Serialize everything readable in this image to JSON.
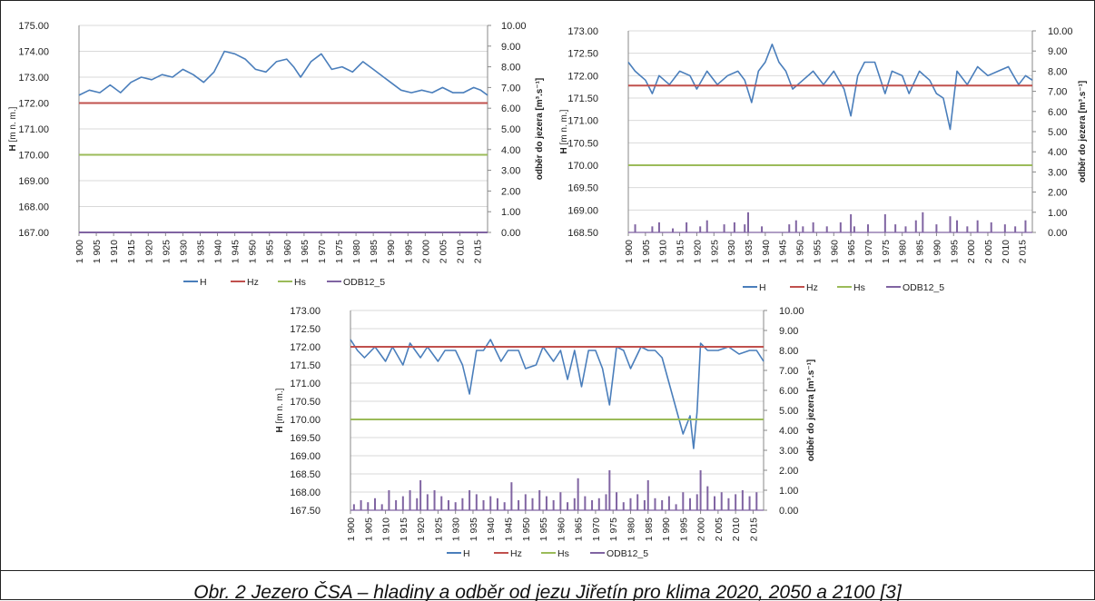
{
  "figure": {
    "caption": "Obr. 2 Jezero ČSA – hladiny a odběr od jezu Jiřetín pro klima 2020, 2050 a 2100 [3]"
  },
  "legend_labels": [
    "H",
    "Hz",
    "Hs",
    "ODB12_5"
  ],
  "colors": {
    "H": "#4a7ebb",
    "Hz": "#c0504d",
    "Hs": "#9bbb59",
    "ODB12_5": "#8064a2"
  },
  "chart_data": [
    {
      "type": "line",
      "ylabel": "H [m n. m.]",
      "y2label": "odběr do jezera [m³.s⁻¹]",
      "ylim": [
        167.0,
        175.0
      ],
      "yticks": [
        "175.00",
        "174.00",
        "173.00",
        "172.00",
        "171.00",
        "170.00",
        "169.00",
        "168.00",
        "167.00"
      ],
      "y2lim": [
        0,
        10
      ],
      "y2ticks": [
        "10.00",
        "9.00",
        "8.00",
        "7.00",
        "6.00",
        "5.00",
        "4.00",
        "3.00",
        "2.00",
        "1.00",
        "0.00"
      ],
      "xlim": [
        1900,
        2018
      ],
      "xticks": [
        "1 900",
        "1 905",
        "1 910",
        "1 915",
        "1 920",
        "1 925",
        "1 930",
        "1 935",
        "1 940",
        "1 945",
        "1 950",
        "1 955",
        "1 960",
        "1 965",
        "1 970",
        "1 975",
        "1 980",
        "1 985",
        "1 990",
        "1 995",
        "2 000",
        "2 005",
        "2 010",
        "2 015"
      ],
      "grid": true,
      "legend": "bottom",
      "series": [
        {
          "name": "H",
          "axis": "left",
          "x": [
            1900,
            1903,
            1906,
            1909,
            1912,
            1915,
            1918,
            1921,
            1924,
            1927,
            1930,
            1933,
            1936,
            1939,
            1942,
            1945,
            1948,
            1951,
            1954,
            1957,
            1960,
            1962,
            1964,
            1967,
            1970,
            1973,
            1976,
            1979,
            1982,
            1985,
            1988,
            1990,
            1993,
            1996,
            1999,
            2002,
            2005,
            2008,
            2011,
            2014,
            2016,
            2018
          ],
          "y": [
            172.3,
            172.5,
            172.4,
            172.7,
            172.4,
            172.8,
            173.0,
            172.9,
            173.1,
            173.0,
            173.3,
            173.1,
            172.8,
            173.2,
            174.0,
            173.9,
            173.7,
            173.3,
            173.2,
            173.6,
            173.7,
            173.4,
            173.0,
            173.6,
            173.9,
            173.3,
            173.4,
            173.2,
            173.6,
            173.3,
            173.0,
            172.8,
            172.5,
            172.4,
            172.5,
            172.4,
            172.6,
            172.4,
            172.4,
            172.6,
            172.5,
            172.3
          ]
        },
        {
          "name": "Hz",
          "axis": "left",
          "x": [
            1900,
            2018
          ],
          "y": [
            172.0,
            172.0
          ]
        },
        {
          "name": "Hs",
          "axis": "left",
          "x": [
            1900,
            2018
          ],
          "y": [
            170.0,
            170.0
          ]
        },
        {
          "name": "ODB12_5",
          "axis": "right",
          "x": [
            1900,
            2018
          ],
          "y": [
            0.0,
            0.0
          ]
        }
      ]
    },
    {
      "type": "line",
      "ylabel": "H [m n. m.]",
      "y2label": "odběr do jezera [m³.s⁻¹]",
      "ylim": [
        168.5,
        173.0
      ],
      "yticks": [
        "173.00",
        "172.50",
        "172.00",
        "171.50",
        "171.00",
        "170.50",
        "170.00",
        "169.50",
        "169.00",
        "168.50"
      ],
      "y2lim": [
        0,
        10
      ],
      "y2ticks": [
        "10.00",
        "9.00",
        "8.00",
        "7.00",
        "6.00",
        "5.00",
        "4.00",
        "3.00",
        "2.00",
        "1.00",
        "0.00"
      ],
      "xlim": [
        1900,
        2018
      ],
      "xticks": [
        "1 900",
        "1 905",
        "1 910",
        "1 915",
        "1 920",
        "1 925",
        "1 930",
        "1 935",
        "1 940",
        "1 945",
        "1 950",
        "1 955",
        "1 960",
        "1 965",
        "1 970",
        "1 975",
        "1 980",
        "1 985",
        "1 990",
        "1 995",
        "2 000",
        "2 005",
        "2 010",
        "2 015"
      ],
      "grid": true,
      "legend": "bottom",
      "series": [
        {
          "name": "H",
          "axis": "left",
          "x": [
            1900,
            1902,
            1905,
            1907,
            1909,
            1912,
            1915,
            1918,
            1920,
            1923,
            1926,
            1929,
            1932,
            1934,
            1936,
            1938,
            1940,
            1942,
            1944,
            1946,
            1948,
            1951,
            1954,
            1957,
            1960,
            1963,
            1965,
            1967,
            1969,
            1972,
            1975,
            1977,
            1980,
            1982,
            1985,
            1988,
            1990,
            1992,
            1994,
            1996,
            1999,
            2002,
            2005,
            2008,
            2011,
            2014,
            2016,
            2018
          ],
          "y": [
            172.3,
            172.1,
            171.9,
            171.6,
            172.0,
            171.8,
            172.1,
            172.0,
            171.7,
            172.1,
            171.8,
            172.0,
            172.1,
            171.9,
            171.4,
            172.1,
            172.3,
            172.7,
            172.3,
            172.1,
            171.7,
            171.9,
            172.1,
            171.8,
            172.1,
            171.7,
            171.1,
            172.0,
            172.3,
            172.3,
            171.6,
            172.1,
            172.0,
            171.6,
            172.1,
            171.9,
            171.6,
            171.5,
            170.8,
            172.1,
            171.8,
            172.2,
            172.0,
            172.1,
            172.2,
            171.8,
            172.0,
            171.9
          ]
        },
        {
          "name": "Hz",
          "axis": "left",
          "x": [
            1900,
            2018
          ],
          "y": [
            171.78,
            171.78
          ]
        },
        {
          "name": "Hs",
          "axis": "left",
          "x": [
            1900,
            2018
          ],
          "y": [
            170.0,
            170.0
          ]
        },
        {
          "name": "ODB12_5",
          "axis": "right",
          "x": [
            1902,
            1907,
            1909,
            1913,
            1917,
            1921,
            1923,
            1928,
            1931,
            1934,
            1935,
            1939,
            1947,
            1949,
            1951,
            1954,
            1958,
            1962,
            1965,
            1966,
            1970,
            1975,
            1978,
            1981,
            1984,
            1986,
            1990,
            1994,
            1996,
            1999,
            2002,
            2006,
            2010,
            2013,
            2016
          ],
          "y": [
            0.4,
            0.3,
            0.5,
            0.2,
            0.5,
            0.3,
            0.6,
            0.4,
            0.5,
            0.4,
            1.0,
            0.3,
            0.4,
            0.6,
            0.3,
            0.5,
            0.3,
            0.5,
            0.9,
            0.3,
            0.4,
            0.9,
            0.4,
            0.3,
            0.6,
            1.0,
            0.4,
            0.8,
            0.6,
            0.3,
            0.6,
            0.5,
            0.4,
            0.3,
            0.6
          ]
        }
      ]
    },
    {
      "type": "line",
      "ylabel": "H [m n. m.]",
      "y2label": "odběr do jezera [m³.s⁻¹]",
      "ylim": [
        167.5,
        173.0
      ],
      "yticks": [
        "173.00",
        "172.50",
        "172.00",
        "171.50",
        "171.00",
        "170.50",
        "170.00",
        "169.50",
        "169.00",
        "168.50",
        "168.00",
        "167.50"
      ],
      "y2lim": [
        0,
        10
      ],
      "y2ticks": [
        "10.00",
        "9.00",
        "8.00",
        "7.00",
        "6.00",
        "5.00",
        "4.00",
        "3.00",
        "2.00",
        "1.00",
        "0.00"
      ],
      "xlim": [
        1900,
        2018
      ],
      "xticks": [
        "1 900",
        "1 905",
        "1 910",
        "1 915",
        "1 920",
        "1 925",
        "1 930",
        "1 935",
        "1 940",
        "1 945",
        "1 950",
        "1 955",
        "1 960",
        "1 965",
        "1 970",
        "1 975",
        "1 980",
        "1 985",
        "1 990",
        "1 995",
        "2 000",
        "2 005",
        "2 010",
        "2 015"
      ],
      "grid": true,
      "legend": "bottom",
      "series": [
        {
          "name": "H",
          "axis": "left",
          "x": [
            1900,
            1902,
            1904,
            1907,
            1910,
            1912,
            1915,
            1917,
            1920,
            1922,
            1925,
            1927,
            1930,
            1932,
            1934,
            1936,
            1938,
            1940,
            1943,
            1945,
            1948,
            1950,
            1953,
            1955,
            1958,
            1960,
            1962,
            1964,
            1966,
            1968,
            1970,
            1972,
            1974,
            1976,
            1978,
            1980,
            1983,
            1985,
            1987,
            1989,
            1991,
            1993,
            1995,
            1997,
            1998,
            1999,
            2000,
            2002,
            2005,
            2008,
            2011,
            2014,
            2016,
            2018
          ],
          "y": [
            172.2,
            171.9,
            171.7,
            172.0,
            171.6,
            172.0,
            171.5,
            172.1,
            171.7,
            172.0,
            171.6,
            171.9,
            171.9,
            171.5,
            170.7,
            171.9,
            171.9,
            172.2,
            171.6,
            171.9,
            171.9,
            171.4,
            171.5,
            172.0,
            171.6,
            171.9,
            171.1,
            171.9,
            170.9,
            171.9,
            171.9,
            171.4,
            170.4,
            172.0,
            171.9,
            171.4,
            172.0,
            171.9,
            171.9,
            171.7,
            171.0,
            170.3,
            169.6,
            170.1,
            169.2,
            170.2,
            172.1,
            171.9,
            171.9,
            172.0,
            171.8,
            171.9,
            171.9,
            171.6
          ]
        },
        {
          "name": "Hz",
          "axis": "left",
          "x": [
            1900,
            2018
          ],
          "y": [
            172.0,
            172.0
          ]
        },
        {
          "name": "Hs",
          "axis": "left",
          "x": [
            1900,
            2018
          ],
          "y": [
            170.0,
            170.0
          ]
        },
        {
          "name": "ODB12_5",
          "axis": "right",
          "x": [
            1901,
            1903,
            1905,
            1907,
            1909,
            1911,
            1913,
            1915,
            1917,
            1919,
            1920,
            1922,
            1924,
            1926,
            1928,
            1930,
            1932,
            1934,
            1936,
            1938,
            1940,
            1942,
            1944,
            1946,
            1948,
            1950,
            1952,
            1954,
            1956,
            1958,
            1960,
            1962,
            1964,
            1965,
            1967,
            1969,
            1971,
            1973,
            1974,
            1976,
            1978,
            1980,
            1982,
            1984,
            1985,
            1987,
            1989,
            1991,
            1993,
            1995,
            1997,
            1999,
            2000,
            2002,
            2004,
            2006,
            2008,
            2010,
            2012,
            2014,
            2016
          ],
          "y": [
            0.3,
            0.5,
            0.4,
            0.6,
            0.3,
            1.0,
            0.5,
            0.7,
            1.0,
            0.6,
            1.5,
            0.8,
            1.0,
            0.7,
            0.5,
            0.4,
            0.6,
            1.0,
            0.8,
            0.5,
            0.7,
            0.6,
            0.4,
            1.4,
            0.5,
            0.8,
            0.6,
            1.0,
            0.7,
            0.5,
            0.9,
            0.4,
            0.6,
            1.6,
            0.7,
            0.5,
            0.6,
            0.8,
            2.0,
            0.9,
            0.4,
            0.6,
            0.8,
            0.5,
            1.5,
            0.6,
            0.5,
            0.7,
            0.3,
            0.9,
            0.6,
            0.8,
            2.0,
            1.2,
            0.7,
            0.9,
            0.6,
            0.8,
            1.0,
            0.7,
            0.9
          ]
        }
      ]
    }
  ]
}
